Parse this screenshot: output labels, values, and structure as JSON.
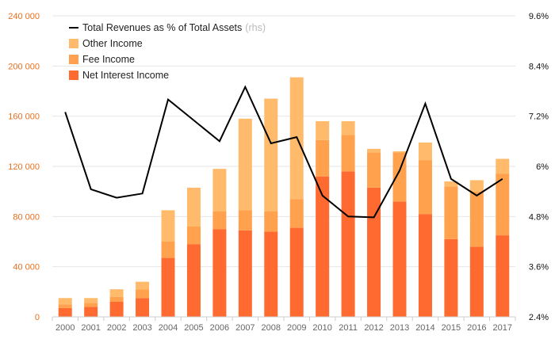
{
  "chart_data": {
    "type": "bar",
    "stacked": true,
    "categories": [
      "2000",
      "2001",
      "2002",
      "2003",
      "2004",
      "2005",
      "2006",
      "2007",
      "2008",
      "2009",
      "2010",
      "2011",
      "2012",
      "2013",
      "2014",
      "2015",
      "2016",
      "2017"
    ],
    "series": [
      {
        "name": "Net Interest Income",
        "color": "#fe6a2f",
        "values": [
          7000,
          8000,
          12000,
          15000,
          47000,
          58000,
          70000,
          69000,
          68000,
          71000,
          112000,
          116000,
          103000,
          92000,
          82000,
          62000,
          56000,
          65000
        ]
      },
      {
        "name": "Fee Income",
        "color": "#ffa14d",
        "values": [
          3000,
          3000,
          4000,
          7000,
          13000,
          14000,
          14000,
          16000,
          16000,
          23000,
          29000,
          29000,
          28000,
          39000,
          43000,
          42000,
          44000,
          49000
        ]
      },
      {
        "name": "Other Income",
        "color": "#ffbb6b",
        "values": [
          5000,
          4000,
          6000,
          6000,
          25000,
          31000,
          34000,
          73000,
          90000,
          97000,
          15000,
          11000,
          3000,
          1000,
          14000,
          4000,
          9000,
          12000
        ]
      }
    ],
    "line": {
      "name": "Total Revenues as % of Total Assets",
      "note": "(rhs)",
      "color": "#000000",
      "values": [
        7.3,
        5.45,
        5.25,
        5.35,
        7.6,
        7.1,
        6.6,
        7.9,
        6.55,
        6.7,
        5.3,
        4.8,
        4.78,
        5.9,
        7.5,
        5.7,
        5.3,
        5.7
      ]
    },
    "y_left": {
      "min": 0,
      "max": 240000,
      "ticks": [
        0,
        40000,
        80000,
        120000,
        160000,
        200000,
        240000
      ],
      "tick_labels": [
        "0",
        "40 000",
        "80 000",
        "120 000",
        "160 000",
        "200 000",
        "240 000"
      ],
      "color": "#e8701e"
    },
    "y_right": {
      "min": 2.4,
      "max": 9.6,
      "ticks": [
        2.4,
        3.6,
        4.8,
        6.0,
        7.2,
        8.4,
        9.6
      ],
      "tick_labels": [
        "2.4%",
        "3.6%",
        "4.8%",
        "6%",
        "7.2%",
        "8.4%",
        "9.6%"
      ],
      "color": "#111111"
    },
    "legend": {
      "position": "top-left",
      "order": [
        "line",
        "Other Income",
        "Fee Income",
        "Net Interest Income"
      ]
    },
    "grid": true,
    "title": "",
    "xlabel": "",
    "ylabel": ""
  }
}
